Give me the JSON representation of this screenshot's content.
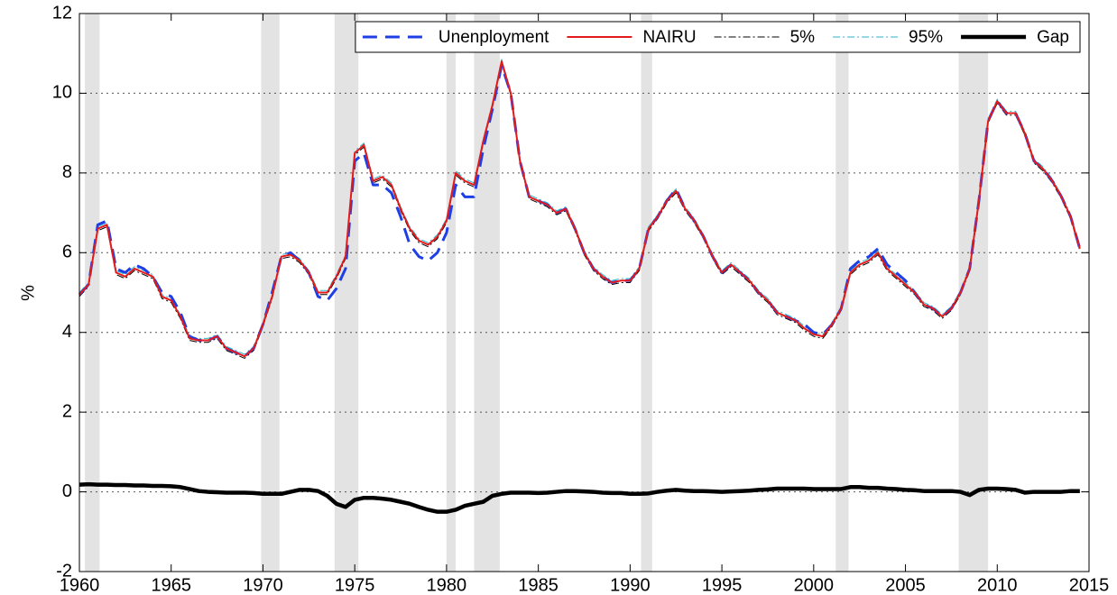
{
  "chart_data": {
    "type": "line",
    "ylabel": "%",
    "xlim": [
      1960,
      2015
    ],
    "ylim": [
      -2,
      12
    ],
    "xticks": [
      1960,
      1965,
      1970,
      1975,
      1980,
      1985,
      1990,
      1995,
      2000,
      2005,
      2010,
      2015
    ],
    "yticks": [
      -2,
      0,
      2,
      4,
      6,
      8,
      10,
      12
    ],
    "grid": true,
    "legend": "top-right",
    "shaded_periods": [
      [
        1960.3,
        1961.1
      ],
      [
        1969.9,
        1970.9
      ],
      [
        1973.9,
        1975.2
      ],
      [
        1980.0,
        1980.5
      ],
      [
        1981.5,
        1982.9
      ],
      [
        1990.6,
        1991.2
      ],
      [
        2001.2,
        2001.9
      ],
      [
        2007.9,
        2009.5
      ]
    ],
    "shade_color": "#e3e3e3",
    "x": [
      1960,
      1960.5,
      1961,
      1961.5,
      1962,
      1962.5,
      1963,
      1963.5,
      1964,
      1964.5,
      1965,
      1965.5,
      1966,
      1966.5,
      1967,
      1967.5,
      1968,
      1968.5,
      1969,
      1969.5,
      1970,
      1970.5,
      1971,
      1971.5,
      1972,
      1972.5,
      1973,
      1973.5,
      1974,
      1974.5,
      1975,
      1975.5,
      1976,
      1976.5,
      1977,
      1977.5,
      1978,
      1978.5,
      1979,
      1979.5,
      1980,
      1980.5,
      1981,
      1981.5,
      1982,
      1982.5,
      1983,
      1983.5,
      1984,
      1984.5,
      1985,
      1985.5,
      1986,
      1986.5,
      1987,
      1987.5,
      1988,
      1988.5,
      1989,
      1989.5,
      1990,
      1990.5,
      1991,
      1991.5,
      1992,
      1992.5,
      1993,
      1993.5,
      1994,
      1994.5,
      1995,
      1995.5,
      1996,
      1996.5,
      1997,
      1997.5,
      1998,
      1998.5,
      1999,
      1999.5,
      2000,
      2000.5,
      2001,
      2001.5,
      2002,
      2002.5,
      2003,
      2003.5,
      2004,
      2004.5,
      2005,
      2005.5,
      2006,
      2006.5,
      2007,
      2007.5,
      2008,
      2008.5,
      2009,
      2009.5,
      2010,
      2010.5,
      2011,
      2011.5,
      2012,
      2012.5,
      2013,
      2013.5,
      2014,
      2014.5
    ],
    "series": [
      {
        "name": "Unenployment",
        "color": "#1f3fe6",
        "style": "dashed",
        "values": [
          4.95,
          5.2,
          6.7,
          6.8,
          5.6,
          5.5,
          5.7,
          5.6,
          5.4,
          5.0,
          4.9,
          4.5,
          3.9,
          3.8,
          3.8,
          3.9,
          3.6,
          3.5,
          3.4,
          3.6,
          4.2,
          5.0,
          5.9,
          6.0,
          5.8,
          5.5,
          4.9,
          4.8,
          5.1,
          5.6,
          8.3,
          8.5,
          7.7,
          7.7,
          7.5,
          6.9,
          6.2,
          5.9,
          5.8,
          6.0,
          6.5,
          7.7,
          7.4,
          7.4,
          8.6,
          9.6,
          10.7,
          10.0,
          8.3,
          7.4,
          7.3,
          7.2,
          7.0,
          7.1,
          6.6,
          6.0,
          5.6,
          5.4,
          5.25,
          5.3,
          5.3,
          5.6,
          6.6,
          6.9,
          7.3,
          7.6,
          7.1,
          6.8,
          6.4,
          5.9,
          5.5,
          5.7,
          5.5,
          5.3,
          5.0,
          4.8,
          4.5,
          4.4,
          4.3,
          4.2,
          4.0,
          3.95,
          4.2,
          4.6,
          5.6,
          5.8,
          5.9,
          6.1,
          5.7,
          5.5,
          5.3,
          5.0,
          4.7,
          4.6,
          4.4,
          4.6,
          5.0,
          5.6,
          7.3,
          9.3,
          9.8,
          9.5,
          9.5,
          9.0,
          8.3,
          8.1,
          7.8,
          7.4,
          6.9,
          6.1
        ]
      },
      {
        "name": "NAIRU",
        "color": "#e31a1c",
        "style": "solid",
        "values": [
          4.95,
          5.2,
          6.6,
          6.7,
          5.5,
          5.4,
          5.6,
          5.5,
          5.4,
          4.9,
          4.8,
          4.4,
          3.85,
          3.8,
          3.8,
          3.9,
          3.6,
          3.5,
          3.4,
          3.6,
          4.2,
          4.9,
          5.9,
          5.95,
          5.8,
          5.5,
          5.0,
          5.0,
          5.4,
          5.9,
          8.5,
          8.7,
          7.8,
          7.9,
          7.7,
          7.1,
          6.6,
          6.3,
          6.2,
          6.4,
          6.8,
          8.0,
          7.8,
          7.7,
          8.8,
          9.7,
          10.8,
          10.0,
          8.3,
          7.4,
          7.3,
          7.2,
          7.0,
          7.1,
          6.6,
          6.0,
          5.6,
          5.4,
          5.25,
          5.3,
          5.3,
          5.6,
          6.6,
          6.9,
          7.3,
          7.55,
          7.1,
          6.8,
          6.4,
          5.9,
          5.5,
          5.7,
          5.5,
          5.3,
          5.0,
          4.8,
          4.5,
          4.4,
          4.3,
          4.1,
          3.95,
          3.9,
          4.2,
          4.6,
          5.5,
          5.7,
          5.8,
          6.0,
          5.6,
          5.4,
          5.2,
          5.0,
          4.7,
          4.6,
          4.4,
          4.6,
          5.0,
          5.6,
          7.3,
          9.3,
          9.8,
          9.5,
          9.5,
          9.0,
          8.3,
          8.1,
          7.8,
          7.4,
          6.9,
          6.1
        ]
      },
      {
        "name": "5%",
        "color": "#000000",
        "style": "dashdot",
        "values": [
          4.9,
          5.15,
          6.55,
          6.65,
          5.45,
          5.35,
          5.55,
          5.45,
          5.35,
          4.85,
          4.75,
          4.35,
          3.8,
          3.75,
          3.75,
          3.85,
          3.55,
          3.45,
          3.35,
          3.55,
          4.15,
          4.85,
          5.85,
          5.9,
          5.75,
          5.45,
          4.95,
          4.95,
          5.35,
          5.85,
          8.45,
          8.65,
          7.75,
          7.85,
          7.65,
          7.05,
          6.55,
          6.25,
          6.15,
          6.35,
          6.75,
          7.95,
          7.75,
          7.65,
          8.75,
          9.65,
          10.75,
          9.95,
          8.25,
          7.35,
          7.25,
          7.15,
          6.95,
          7.05,
          6.55,
          5.95,
          5.55,
          5.35,
          5.2,
          5.25,
          5.25,
          5.55,
          6.55,
          6.85,
          7.25,
          7.5,
          7.05,
          6.75,
          6.35,
          5.85,
          5.45,
          5.65,
          5.45,
          5.25,
          4.95,
          4.75,
          4.45,
          4.35,
          4.25,
          4.05,
          3.9,
          3.85,
          4.15,
          4.55,
          5.45,
          5.65,
          5.75,
          5.95,
          5.55,
          5.35,
          5.15,
          4.95,
          4.65,
          4.55,
          4.35,
          4.55,
          4.95,
          5.55,
          7.25,
          9.25,
          9.75,
          9.45,
          9.45,
          8.95,
          8.25,
          8.05,
          7.75,
          7.35,
          6.85,
          6.05
        ]
      },
      {
        "name": "95%",
        "color": "#2bb5c8",
        "style": "dashdot",
        "values": [
          5.0,
          5.25,
          6.65,
          6.75,
          5.55,
          5.45,
          5.65,
          5.55,
          5.45,
          4.95,
          4.85,
          4.45,
          3.9,
          3.85,
          3.85,
          3.95,
          3.65,
          3.55,
          3.45,
          3.65,
          4.25,
          4.95,
          5.95,
          6.0,
          5.85,
          5.55,
          5.05,
          5.05,
          5.45,
          5.95,
          8.55,
          8.75,
          7.85,
          7.95,
          7.75,
          7.15,
          6.65,
          6.35,
          6.25,
          6.45,
          6.85,
          8.05,
          7.85,
          7.75,
          8.85,
          9.75,
          10.85,
          10.05,
          8.35,
          7.45,
          7.35,
          7.25,
          7.05,
          7.15,
          6.65,
          6.05,
          5.65,
          5.45,
          5.3,
          5.35,
          5.35,
          5.65,
          6.65,
          6.95,
          7.35,
          7.6,
          7.15,
          6.85,
          6.45,
          5.95,
          5.55,
          5.75,
          5.55,
          5.35,
          5.05,
          4.85,
          4.55,
          4.45,
          4.35,
          4.15,
          4.0,
          3.95,
          4.25,
          4.65,
          5.55,
          5.75,
          5.85,
          6.05,
          5.65,
          5.45,
          5.25,
          5.05,
          4.75,
          4.65,
          4.45,
          4.65,
          5.05,
          5.65,
          7.35,
          9.35,
          9.85,
          9.55,
          9.55,
          9.05,
          8.35,
          8.15,
          7.85,
          7.45,
          6.95,
          6.15
        ]
      },
      {
        "name": "Gap",
        "color": "#000000",
        "style": "thick",
        "values": [
          0.18,
          0.19,
          0.18,
          0.18,
          0.17,
          0.17,
          0.16,
          0.16,
          0.15,
          0.15,
          0.14,
          0.12,
          0.07,
          0.02,
          0.0,
          -0.01,
          -0.02,
          -0.02,
          -0.02,
          -0.03,
          -0.05,
          -0.05,
          -0.05,
          0.0,
          0.05,
          0.05,
          0.02,
          -0.1,
          -0.3,
          -0.38,
          -0.2,
          -0.15,
          -0.15,
          -0.17,
          -0.2,
          -0.25,
          -0.3,
          -0.38,
          -0.45,
          -0.5,
          -0.5,
          -0.45,
          -0.35,
          -0.3,
          -0.25,
          -0.1,
          -0.05,
          -0.02,
          -0.02,
          -0.02,
          -0.03,
          -0.02,
          0.0,
          0.02,
          0.02,
          0.01,
          0.0,
          -0.02,
          -0.03,
          -0.03,
          -0.05,
          -0.05,
          -0.04,
          0.0,
          0.03,
          0.05,
          0.03,
          0.02,
          0.02,
          0.01,
          0.0,
          0.01,
          0.02,
          0.03,
          0.05,
          0.06,
          0.08,
          0.08,
          0.08,
          0.08,
          0.07,
          0.07,
          0.07,
          0.07,
          0.12,
          0.12,
          0.1,
          0.1,
          0.08,
          0.07,
          0.05,
          0.04,
          0.02,
          0.02,
          0.02,
          0.02,
          0.0,
          -0.08,
          0.05,
          0.08,
          0.08,
          0.07,
          0.05,
          -0.02,
          0.0,
          0.0,
          0.0,
          0.0,
          0.02,
          0.02
        ]
      }
    ]
  }
}
